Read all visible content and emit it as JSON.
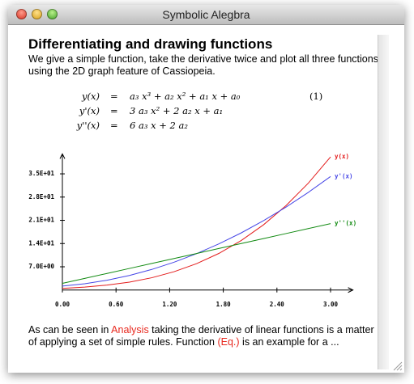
{
  "window": {
    "title": "Symbolic Alegbra"
  },
  "document": {
    "heading": "Differentiating and drawing functions",
    "intro": "We give a simple function, take the derivative twice and plot all three functions using the 2D graph feature of Cassiopeia.",
    "equations": [
      {
        "lhs": "y(x)",
        "eq": "=",
        "rhs": "a₃ x³ + a₂ x² + a₁ x + a₀",
        "number": "(1)"
      },
      {
        "lhs": "y'(x)",
        "eq": "=",
        "rhs": "3 a₃ x² + 2 a₂ x + a₁"
      },
      {
        "lhs": "y''(x)",
        "eq": "=",
        "rhs": "6 a₃ x + 2 a₂"
      }
    ],
    "closing": [
      {
        "text": "As can be seen in "
      },
      {
        "text": "Analysis",
        "color": "#e8281e"
      },
      {
        "text": " taking the derivative of linear functions is a matter of applying a set of simple rules. Function "
      },
      {
        "text": "(Eq.)",
        "color": "#e8281e"
      },
      {
        "text": " is an example for a ..."
      }
    ]
  },
  "chart_data": {
    "type": "line",
    "x": [
      0,
      0.25,
      0.5,
      0.75,
      1,
      1.25,
      1.5,
      1.75,
      2,
      2.25,
      2.5,
      2.75,
      3
    ],
    "series": [
      {
        "name": "y(x)",
        "color": "#e31b1b",
        "values": [
          0.5,
          0.88,
          1.48,
          2.38,
          3.7,
          5.52,
          7.93,
          11.02,
          14.9,
          19.65,
          25.38,
          32.16,
          40.1
        ]
      },
      {
        "name": "y'(x)",
        "color": "#4646e6",
        "values": [
          1.2,
          1.89,
          2.95,
          4.39,
          6.2,
          8.39,
          10.95,
          13.89,
          17.2,
          20.89,
          24.95,
          29.39,
          34.2
        ]
      },
      {
        "name": "y''(x)",
        "color": "#118a11",
        "values": [
          2,
          3.5,
          5,
          6.5,
          8,
          9.5,
          11,
          12.5,
          14,
          15.5,
          17,
          18.5,
          20
        ]
      }
    ],
    "xlim": [
      0,
      3.25
    ],
    "ylim": [
      0,
      41
    ],
    "xticks": [
      {
        "value": 0,
        "label": "0.00"
      },
      {
        "value": 0.6,
        "label": "0.60"
      },
      {
        "value": 1.2,
        "label": "1.20"
      },
      {
        "value": 1.8,
        "label": "1.80"
      },
      {
        "value": 2.4,
        "label": "2.40"
      },
      {
        "value": 3,
        "label": "3.00"
      }
    ],
    "yticks": [
      {
        "value": 7,
        "label": "7.0E+00"
      },
      {
        "value": 14,
        "label": "1.4E+01"
      },
      {
        "value": 21,
        "label": "2.1E+01"
      },
      {
        "value": 28,
        "label": "2.8E+01"
      },
      {
        "value": 35,
        "label": "3.5E+01"
      }
    ]
  }
}
